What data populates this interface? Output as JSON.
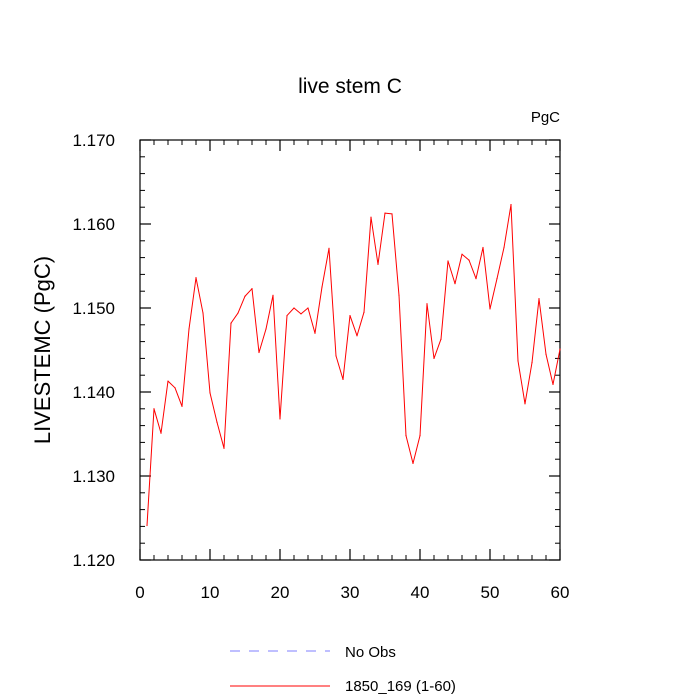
{
  "chart_data": {
    "type": "line",
    "title": "live stem C",
    "units_label": "PgC",
    "ylabel": "LIVESTEMC  (PgC)",
    "xlabel": "",
    "xlim": [
      0,
      60
    ],
    "ylim": [
      1.12,
      1.17
    ],
    "x_ticks": [
      0,
      10,
      20,
      30,
      40,
      50,
      60
    ],
    "x_tick_labels": [
      "0",
      "10",
      "20",
      "30",
      "40",
      "50",
      "60"
    ],
    "y_ticks": [
      1.12,
      1.13,
      1.14,
      1.15,
      1.16,
      1.17
    ],
    "y_tick_labels": [
      "1.120",
      "1.130",
      "1.140",
      "1.150",
      "1.160",
      "1.170"
    ],
    "grid": false,
    "legend_position": "bottom-center",
    "series": [
      {
        "name": "No Obs",
        "color": "#7f7fff",
        "dash": "dashed",
        "x": [],
        "values": []
      },
      {
        "name": "1850_169 (1-60)",
        "color": "#ff0000",
        "dash": "solid",
        "x": [
          1,
          2,
          3,
          4,
          5,
          6,
          7,
          8,
          9,
          10,
          11,
          12,
          13,
          14,
          15,
          16,
          17,
          18,
          19,
          20,
          21,
          22,
          23,
          24,
          25,
          26,
          27,
          28,
          29,
          30,
          31,
          32,
          33,
          34,
          35,
          36,
          37,
          38,
          39,
          40,
          41,
          42,
          43,
          44,
          45,
          46,
          47,
          48,
          49,
          50,
          51,
          52,
          53,
          54,
          55,
          56,
          57,
          58,
          59,
          60
        ],
        "values": [
          1.1241,
          1.138,
          1.1351,
          1.1413,
          1.1405,
          1.1383,
          1.1475,
          1.1536,
          1.1494,
          1.1399,
          1.1364,
          1.1333,
          1.1482,
          1.1494,
          1.1514,
          1.1523,
          1.1447,
          1.1475,
          1.1515,
          1.1368,
          1.1491,
          1.15,
          1.1493,
          1.15,
          1.147,
          1.1525,
          1.1571,
          1.1443,
          1.1415,
          1.1491,
          1.1467,
          1.1495,
          1.1608,
          1.1552,
          1.1613,
          1.1612,
          1.1515,
          1.1348,
          1.1315,
          1.1348,
          1.1505,
          1.144,
          1.1463,
          1.1556,
          1.1529,
          1.1564,
          1.1557,
          1.1535,
          1.1572,
          1.1499,
          1.1535,
          1.1572,
          1.1623,
          1.1437,
          1.1386,
          1.1435,
          1.1511,
          1.1445,
          1.1409,
          1.1451
        ]
      }
    ]
  }
}
